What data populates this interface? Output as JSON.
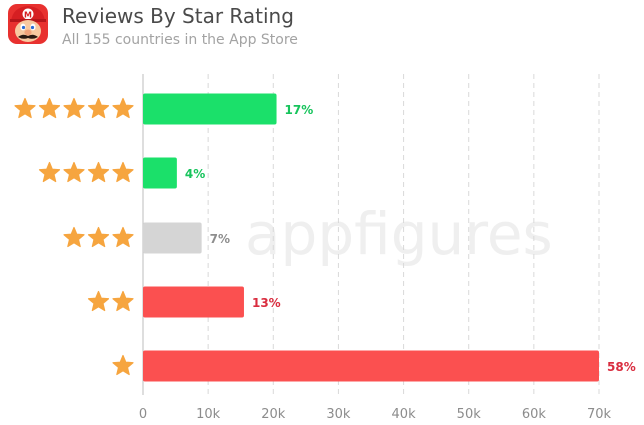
{
  "header": {
    "title": "Reviews By Star Rating",
    "subtitle": "All 155 countries in the App Store",
    "app_icon": "mario-app-icon"
  },
  "watermark": "appfigures",
  "colors": {
    "positive": "#1be06a",
    "neutral": "#d5d5d5",
    "negative": "#fb5050",
    "star": "#f6a53f",
    "gridline": "#d9d9d9",
    "positive_label": "#17c45c",
    "neutral_label": "#8e8e8e",
    "negative_label": "#d92d3f"
  },
  "chart_data": {
    "type": "bar",
    "orientation": "horizontal",
    "title": "Reviews By Star Rating",
    "subtitle": "All 155 countries in the App Store",
    "categories": [
      "5 stars",
      "4 stars",
      "3 stars",
      "2 stars",
      "1 star"
    ],
    "stars": [
      5,
      4,
      3,
      2,
      1
    ],
    "values": [
      20500,
      5200,
      9000,
      15500,
      70000
    ],
    "labels": [
      "17%",
      "4%",
      "7%",
      "13%",
      "58%"
    ],
    "sentiment": [
      "positive",
      "positive",
      "neutral",
      "negative",
      "negative"
    ],
    "xlim": [
      0,
      70000
    ],
    "xticks": [
      0,
      10000,
      20000,
      30000,
      40000,
      50000,
      60000,
      70000
    ],
    "xtick_labels": [
      "0",
      "10k",
      "20k",
      "30k",
      "40k",
      "50k",
      "60k",
      "70k"
    ],
    "xlabel": "",
    "ylabel": "",
    "grid": "vertical dashed",
    "legend": "none"
  }
}
